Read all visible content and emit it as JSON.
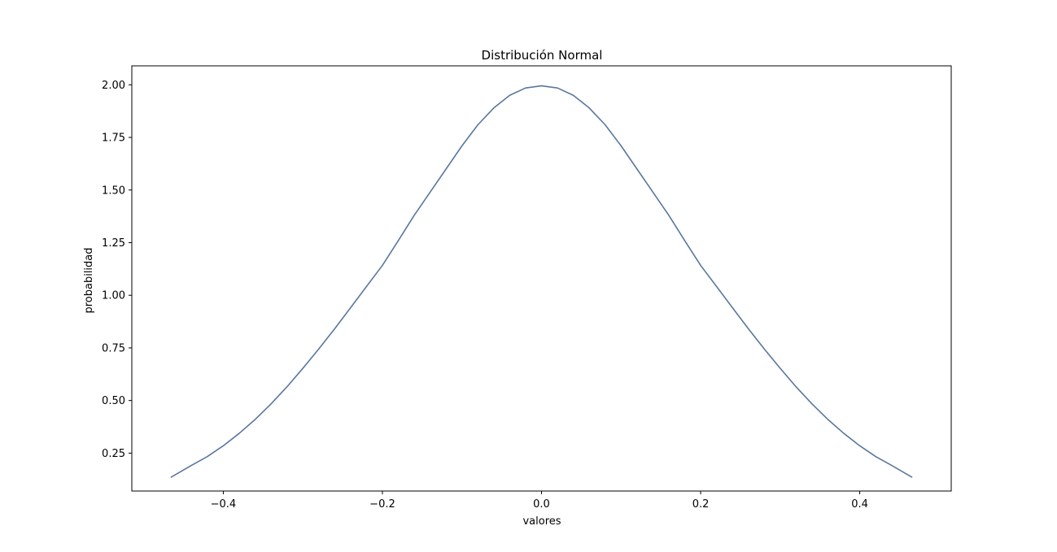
{
  "chart_data": {
    "type": "line",
    "title": "Distribución Normal",
    "xlabel": "valores",
    "ylabel": "probabilidad",
    "xlim": [
      -0.515,
      0.515
    ],
    "ylim": [
      0.07,
      2.09
    ],
    "xticks": [
      -0.4,
      -0.2,
      0.0,
      0.2,
      0.4
    ],
    "xtick_labels": [
      "−0.4",
      "−0.2",
      "0.0",
      "0.2",
      "0.4"
    ],
    "yticks": [
      0.25,
      0.5,
      0.75,
      1.0,
      1.25,
      1.5,
      1.75,
      2.0
    ],
    "ytick_labels": [
      "0.25",
      "0.50",
      "0.75",
      "1.00",
      "1.25",
      "1.50",
      "1.75",
      "2.00"
    ],
    "grid": false,
    "series": [
      {
        "color": "#5a779e",
        "x": [
          -0.466,
          -0.44,
          -0.42,
          -0.4,
          -0.38,
          -0.36,
          -0.34,
          -0.32,
          -0.3,
          -0.28,
          -0.26,
          -0.24,
          -0.22,
          -0.2,
          -0.18,
          -0.16,
          -0.14,
          -0.12,
          -0.1,
          -0.08,
          -0.06,
          -0.04,
          -0.02,
          0.0,
          0.02,
          0.04,
          0.06,
          0.08,
          0.1,
          0.12,
          0.14,
          0.16,
          0.18,
          0.2,
          0.22,
          0.24,
          0.26,
          0.28,
          0.3,
          0.32,
          0.34,
          0.36,
          0.38,
          0.4,
          0.42,
          0.44,
          0.466
        ],
        "y": [
          0.135,
          0.192,
          0.234,
          0.285,
          0.344,
          0.41,
          0.484,
          0.565,
          0.653,
          0.745,
          0.841,
          0.941,
          1.042,
          1.142,
          1.26,
          1.38,
          1.49,
          1.6,
          1.71,
          1.81,
          1.89,
          1.95,
          1.985,
          1.995,
          1.985,
          1.95,
          1.89,
          1.81,
          1.71,
          1.6,
          1.49,
          1.38,
          1.26,
          1.142,
          1.042,
          0.941,
          0.841,
          0.745,
          0.653,
          0.565,
          0.484,
          0.41,
          0.344,
          0.285,
          0.234,
          0.192,
          0.135
        ]
      }
    ]
  }
}
